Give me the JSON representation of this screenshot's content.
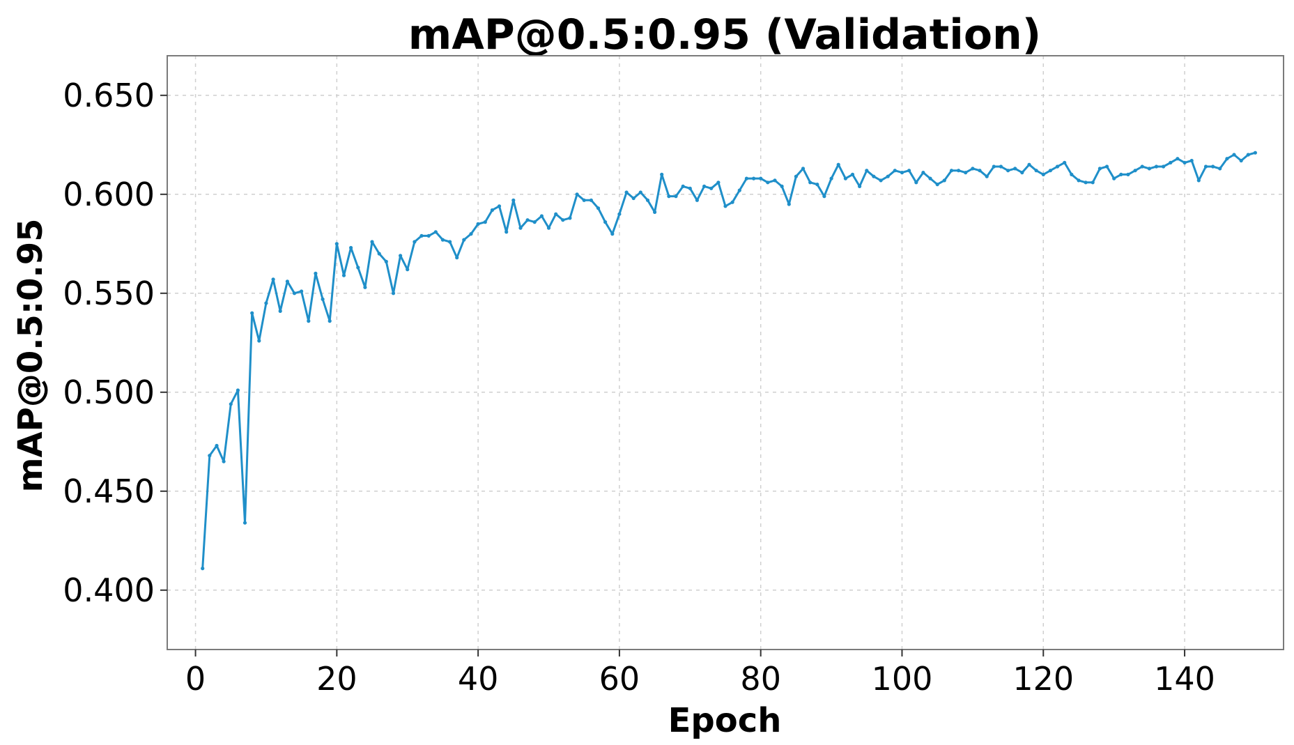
{
  "chart_data": {
    "type": "line",
    "title": "mAP@0.5:0.95 (Validation)",
    "xlabel": "Epoch",
    "ylabel": "mAP@0.5:0.95",
    "xlim": [
      -4,
      154
    ],
    "ylim": [
      0.37,
      0.67
    ],
    "xticks": [
      0,
      20,
      40,
      60,
      80,
      100,
      120,
      140
    ],
    "xtick_labels": [
      "0",
      "20",
      "40",
      "60",
      "80",
      "100",
      "120",
      "140"
    ],
    "yticks": [
      0.4,
      0.45,
      0.5,
      0.55,
      0.6,
      0.65
    ],
    "ytick_labels": [
      "0.400",
      "0.450",
      "0.500",
      "0.550",
      "0.600",
      "0.650"
    ],
    "grid": true,
    "series": [
      {
        "color": "#1f8fc9",
        "x": [
          1,
          2,
          3,
          4,
          5,
          6,
          7,
          8,
          9,
          10,
          11,
          12,
          13,
          14,
          15,
          16,
          17,
          18,
          19,
          20,
          21,
          22,
          23,
          24,
          25,
          26,
          27,
          28,
          29,
          30,
          31,
          32,
          33,
          34,
          35,
          36,
          37,
          38,
          39,
          40,
          41,
          42,
          43,
          44,
          45,
          46,
          47,
          48,
          49,
          50,
          51,
          52,
          53,
          54,
          55,
          56,
          57,
          58,
          59,
          60,
          61,
          62,
          63,
          64,
          65,
          66,
          67,
          68,
          69,
          70,
          71,
          72,
          73,
          74,
          75,
          76,
          77,
          78,
          79,
          80,
          81,
          82,
          83,
          84,
          85,
          86,
          87,
          88,
          89,
          90,
          91,
          92,
          93,
          94,
          95,
          96,
          97,
          98,
          99,
          100,
          101,
          102,
          103,
          104,
          105,
          106,
          107,
          108,
          109,
          110,
          111,
          112,
          113,
          114,
          115,
          116,
          117,
          118,
          119,
          120,
          121,
          122,
          123,
          124,
          125,
          126,
          127,
          128,
          129,
          130,
          131,
          132,
          133,
          134,
          135,
          136,
          137,
          138,
          139,
          140,
          141,
          142,
          143,
          144,
          145,
          146,
          147,
          148,
          149,
          150
        ],
        "y": [
          0.411,
          0.468,
          0.473,
          0.465,
          0.494,
          0.501,
          0.434,
          0.54,
          0.526,
          0.545,
          0.557,
          0.541,
          0.556,
          0.55,
          0.551,
          0.536,
          0.56,
          0.547,
          0.536,
          0.575,
          0.559,
          0.573,
          0.563,
          0.553,
          0.576,
          0.57,
          0.566,
          0.55,
          0.569,
          0.562,
          0.576,
          0.579,
          0.579,
          0.581,
          0.577,
          0.576,
          0.568,
          0.577,
          0.58,
          0.585,
          0.586,
          0.592,
          0.594,
          0.581,
          0.597,
          0.583,
          0.587,
          0.586,
          0.589,
          0.583,
          0.59,
          0.587,
          0.588,
          0.6,
          0.597,
          0.597,
          0.593,
          0.586,
          0.58,
          0.59,
          0.601,
          0.598,
          0.601,
          0.597,
          0.591,
          0.61,
          0.599,
          0.599,
          0.604,
          0.603,
          0.597,
          0.604,
          0.603,
          0.606,
          0.594,
          0.596,
          0.602,
          0.608,
          0.608,
          0.608,
          0.606,
          0.607,
          0.604,
          0.595,
          0.609,
          0.613,
          0.606,
          0.605,
          0.599,
          0.608,
          0.615,
          0.608,
          0.61,
          0.604,
          0.612,
          0.609,
          0.607,
          0.609,
          0.612,
          0.611,
          0.612,
          0.606,
          0.611,
          0.608,
          0.605,
          0.607,
          0.612,
          0.612,
          0.611,
          0.613,
          0.612,
          0.609,
          0.614,
          0.614,
          0.612,
          0.613,
          0.611,
          0.615,
          0.612,
          0.61,
          0.612,
          0.614,
          0.616,
          0.61,
          0.607,
          0.606,
          0.606,
          0.613,
          0.614,
          0.608,
          0.61,
          0.61,
          0.612,
          0.614,
          0.613,
          0.614,
          0.614,
          0.616,
          0.618,
          0.616,
          0.617,
          0.607,
          0.614,
          0.614,
          0.613,
          0.618,
          0.62,
          0.617,
          0.62,
          0.621
        ]
      }
    ]
  }
}
